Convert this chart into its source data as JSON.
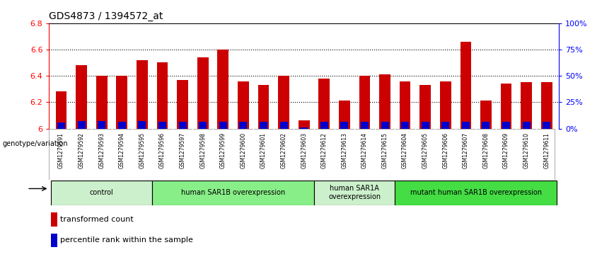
{
  "title": "GDS4873 / 1394572_at",
  "samples": [
    "GSM1279591",
    "GSM1279592",
    "GSM1279593",
    "GSM1279594",
    "GSM1279595",
    "GSM1279596",
    "GSM1279597",
    "GSM1279598",
    "GSM1279599",
    "GSM1279600",
    "GSM1279601",
    "GSM1279602",
    "GSM1279603",
    "GSM1279612",
    "GSM1279613",
    "GSM1279614",
    "GSM1279615",
    "GSM1279604",
    "GSM1279605",
    "GSM1279606",
    "GSM1279607",
    "GSM1279608",
    "GSM1279609",
    "GSM1279610",
    "GSM1279611"
  ],
  "red_values": [
    6.28,
    6.48,
    6.4,
    6.4,
    6.52,
    6.5,
    6.37,
    6.54,
    6.6,
    6.36,
    6.33,
    6.4,
    6.06,
    6.38,
    6.21,
    6.4,
    6.41,
    6.36,
    6.33,
    6.36,
    6.66,
    6.21,
    6.34,
    6.35,
    6.35
  ],
  "blue_heights": [
    0.048,
    0.058,
    0.055,
    0.052,
    0.055,
    0.052,
    0.05,
    0.052,
    0.05,
    0.05,
    0.049,
    0.051,
    0.01,
    0.052,
    0.051,
    0.05,
    0.051,
    0.049,
    0.05,
    0.049,
    0.051,
    0.049,
    0.05,
    0.05,
    0.05
  ],
  "ymin": 6.0,
  "ymax": 6.8,
  "yticks": [
    6.0,
    6.2,
    6.4,
    6.6,
    6.8
  ],
  "ytick_labels": [
    "6",
    "6.2",
    "6.4",
    "6.6",
    "6.8"
  ],
  "right_ytick_percents": [
    0,
    25,
    50,
    75,
    100
  ],
  "right_ytick_labels": [
    "0%",
    "25%",
    "50%",
    "75%",
    "100%"
  ],
  "groups": [
    {
      "label": "control",
      "start": 0,
      "end": 4,
      "color": "#ccf0cc"
    },
    {
      "label": "human SAR1B overexpression",
      "start": 5,
      "end": 12,
      "color": "#88ee88"
    },
    {
      "label": "human SAR1A\noverexpression",
      "start": 13,
      "end": 16,
      "color": "#ccf0cc"
    },
    {
      "label": "mutant human SAR1B overexpression",
      "start": 17,
      "end": 24,
      "color": "#44dd44"
    }
  ],
  "genotype_label": "genotype/variation",
  "legend_red": "transformed count",
  "legend_blue": "percentile rank within the sample",
  "bar_width": 0.55,
  "red_color": "#cc0000",
  "blue_color": "#0000cc",
  "tick_bg_color": "#cccccc",
  "grid_color": "#000000",
  "top_line_color": "#000000"
}
